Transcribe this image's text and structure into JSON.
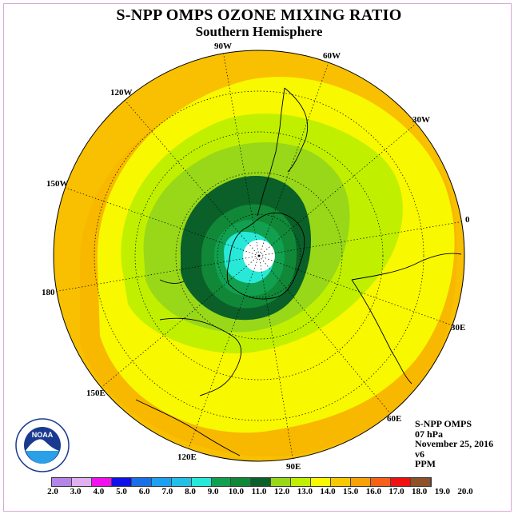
{
  "title": "S-NPP OMPS OZONE MIXING RATIO",
  "subtitle": "Southern Hemisphere",
  "longitude_labels": [
    "90W",
    "60W",
    "30W",
    "0",
    "30E",
    "60E",
    "90E",
    "120E",
    "150E",
    "180",
    "150W",
    "120W"
  ],
  "info": {
    "instrument": "S-NPP OMPS",
    "level": "07 hPa",
    "date": "November 25, 2016",
    "version": "v6",
    "unit": "PPM"
  },
  "logo_text": "NOAA",
  "colorbar": {
    "ticks": [
      "2.0",
      "3.0",
      "4.0",
      "5.0",
      "6.0",
      "7.0",
      "8.0",
      "9.0",
      "10.0",
      "11.0",
      "12.0",
      "13.0",
      "14.0",
      "15.0",
      "16.0",
      "17.0",
      "18.0",
      "19.0",
      "20.0"
    ],
    "colors": [
      "#b584e8",
      "#e0b0f0",
      "#f010f0",
      "#1010e8",
      "#1870e8",
      "#1ea0f0",
      "#20c0e8",
      "#28e8d8",
      "#10a050",
      "#108838",
      "#0a6028",
      "#98d818",
      "#c0f000",
      "#f8f800",
      "#f8c800",
      "#f8a008",
      "#f86018",
      "#f01010",
      "#905028"
    ]
  }
}
